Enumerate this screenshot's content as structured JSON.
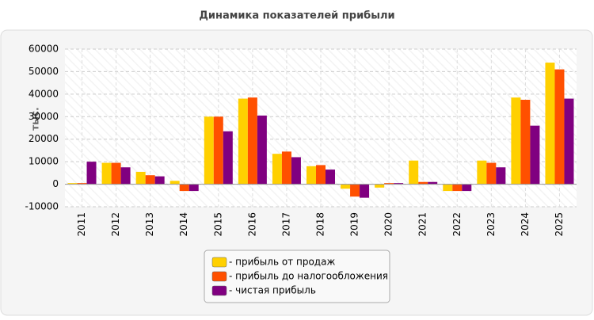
{
  "chart_data": {
    "type": "bar",
    "title": "Динамика показателей прибыли",
    "y_label": "тыс.",
    "categories": [
      "2011",
      "2012",
      "2013",
      "2014",
      "2015",
      "2016",
      "2017",
      "2018",
      "2019",
      "2020",
      "2021",
      "2022",
      "2023",
      "2024",
      "2025"
    ],
    "series": [
      {
        "name": "- прибыль от продаж",
        "color": "#ffd000",
        "values": [
          500,
          9500,
          5500,
          1500,
          30000,
          38000,
          13500,
          8000,
          -2000,
          -1500,
          10500,
          -3000,
          10500,
          38500,
          54000
        ]
      },
      {
        "name": "- прибыль до налогообложения",
        "color": "#ff5000",
        "values": [
          500,
          9500,
          4000,
          -3000,
          30000,
          38500,
          14500,
          8500,
          -5500,
          500,
          1000,
          -3000,
          9500,
          37500,
          51000
        ]
      },
      {
        "name": "- чистая прибыль",
        "color": "#800080",
        "values": [
          10000,
          7500,
          3500,
          -3000,
          23500,
          30500,
          12000,
          6500,
          -6000,
          500,
          1000,
          -3000,
          7500,
          26000,
          38000
        ]
      }
    ],
    "ylim": [
      -10000,
      60000
    ],
    "yticks": [
      -10000,
      0,
      10000,
      20000,
      30000,
      40000,
      50000,
      60000
    ],
    "grid": true
  }
}
